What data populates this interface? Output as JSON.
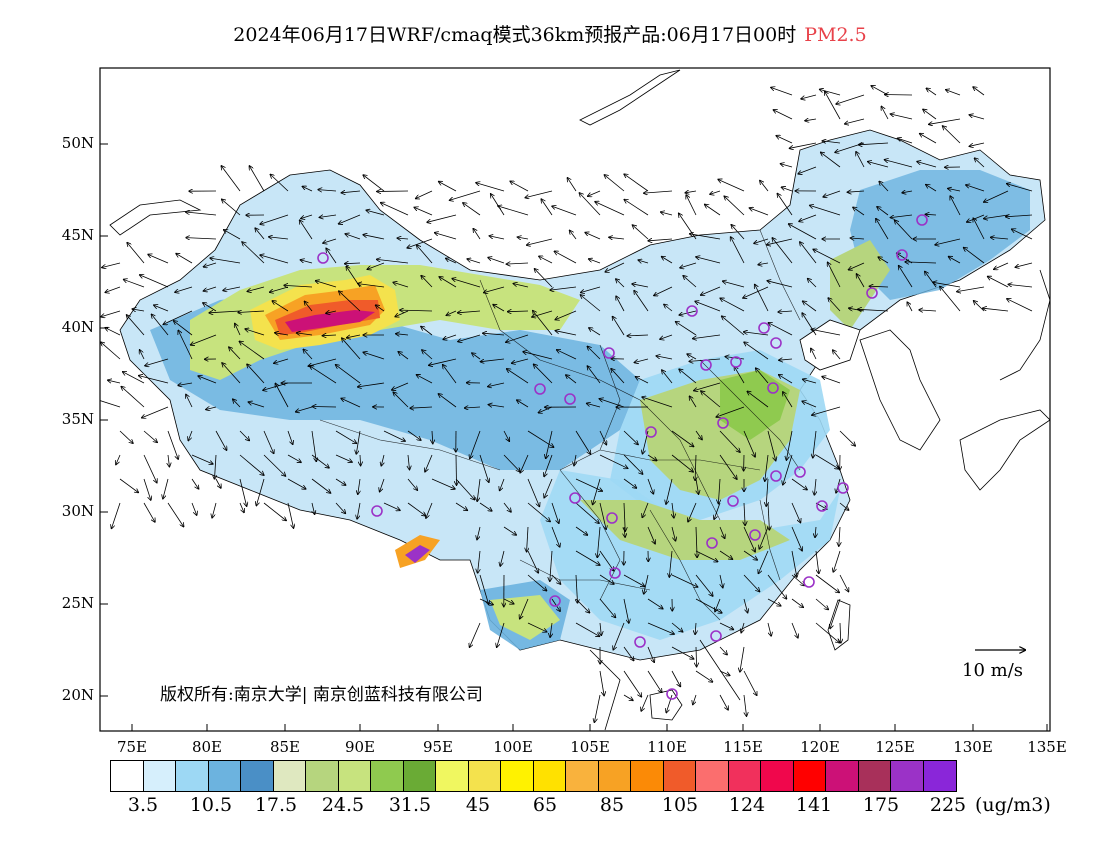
{
  "header": {
    "title": "2024年06月17日WRF/cmaq模式36km预报产品:06月17日00时",
    "pollutant": "PM2.5"
  },
  "axes": {
    "lat_labels": [
      "50N",
      "45N",
      "40N",
      "35N",
      "30N",
      "25N",
      "20N"
    ],
    "lon_labels": [
      "75E",
      "80E",
      "85E",
      "90E",
      "95E",
      "100E",
      "105E",
      "110E",
      "115E",
      "120E",
      "125E",
      "130E",
      "135E"
    ]
  },
  "colorbar": {
    "colors": [
      "#ffffff",
      "#d6effc",
      "#9dd8f4",
      "#6cb3df",
      "#4a8fc6",
      "#dfe8c0",
      "#b6d57e",
      "#c7e37e",
      "#8fca4f",
      "#6aab35",
      "#f0f760",
      "#f4e24d",
      "#fff200",
      "#ffe100",
      "#f9b23d",
      "#f7a224",
      "#fb8a06",
      "#f05b2a",
      "#fb6e6e",
      "#f1305c",
      "#f0074c",
      "#ff0000",
      "#cc1177",
      "#a8305a",
      "#9b32c7",
      "#8a26d9"
    ],
    "labels": [
      "3.5",
      "10.5",
      "17.5",
      "24.5",
      "31.5",
      "45",
      "65",
      "85",
      "105",
      "124",
      "141",
      "175",
      "225"
    ],
    "unit": "(ug/m3)"
  },
  "wind_scale": {
    "label": "10 m/s"
  },
  "copyright": "版权所有:南京大学| 南京创蓝科技有限公司",
  "palette": {
    "ocean_line": "#000000",
    "station_marker": "#9b32c7"
  }
}
